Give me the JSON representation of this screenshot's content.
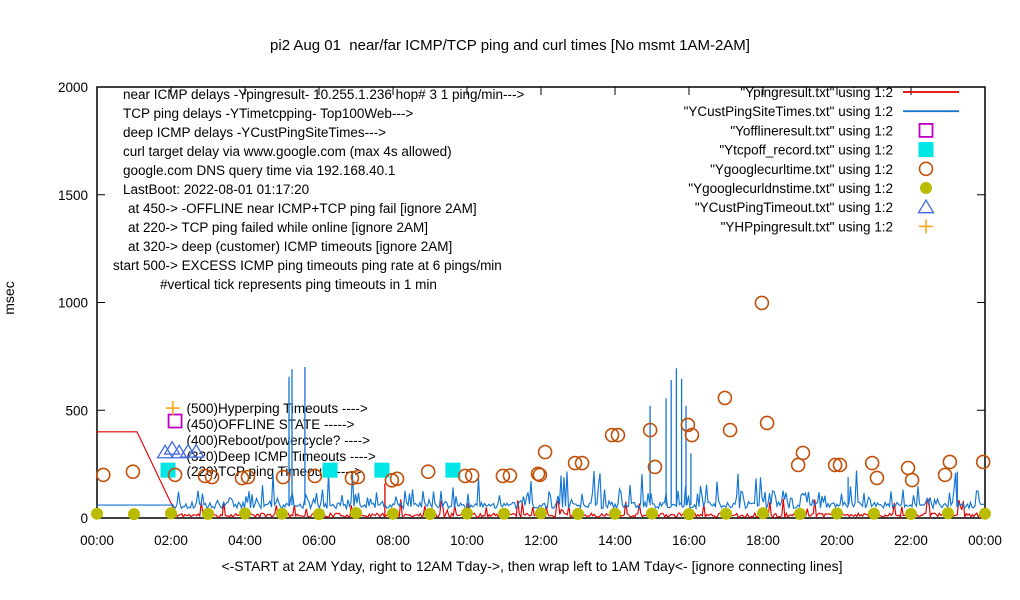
{
  "title": "pi2 Aug 01  near/far ICMP/TCP ping and curl times [No msmt 1AM-2AM]",
  "y_axis": {
    "label": "msec",
    "ticks": [
      0,
      500,
      1000,
      1500,
      2000
    ]
  },
  "x_axis": {
    "tick_labels": [
      "00:00",
      "02:00",
      "04:00",
      "06:00",
      "08:00",
      "10:00",
      "12:00",
      "14:00",
      "16:00",
      "18:00",
      "20:00",
      "22:00",
      "00:00"
    ],
    "caption": "<-START at 2AM Yday, right to 12AM Tday->, then wrap left to 1AM Tday<- [ignore connecting lines]"
  },
  "info_lines": [
    "near ICMP delays -Ypingresult- 10.255.1.236 hop# 3 1 ping/min--->",
    "TCP ping delays -YTimetcpping- Top100Web--->",
    "deep ICMP delays -YCustPingSiteTimes--->",
    "curl target delay via www.google.com (max 4s allowed)",
    "google.com DNS query time via 192.168.40.1",
    "LastBoot: 2022-08-01 01:17:20",
    "at 450-> -OFFLINE near ICMP+TCP ping fail [ignore 2AM]",
    "at 220-> TCP ping failed while online [ignore 2AM]",
    "at 320-> deep (customer) ICMP timeouts [ignore 2AM]",
    "start 500-> EXCESS ICMP ping timeouts ping rate at 6 pings/min",
    "#vertical tick represents ping timeouts in 1 min"
  ],
  "annotations": [
    {
      "label": "(500)Hyperping Timeouts ---->",
      "x_hour": 2.42,
      "y_msec": 510
    },
    {
      "label": "(450)OFFLINE STATE ----->",
      "x_hour": 2.42,
      "y_msec": 437
    },
    {
      "label": "(400)Reboot/powercycle? ---->",
      "x_hour": 2.42,
      "y_msec": 362
    },
    {
      "label": "(320)Deep ICMP Timeouts ---->",
      "x_hour": 2.42,
      "y_msec": 288
    },
    {
      "label": "(220)TCP ping Timeouts ---->",
      "x_hour": 2.42,
      "y_msec": 218
    }
  ],
  "chart_data": {
    "type": "line+scatter",
    "x_unit": "time of day (hours 0-24)",
    "y_unit": "msec",
    "ylim": [
      0,
      2000
    ],
    "xlim_hours": [
      0,
      24
    ],
    "grid": false,
    "legend_position": "top-right",
    "series": [
      {
        "name": "Ypingresult",
        "legend": "\"Ypingresult.txt\" using 1:2",
        "style": "line",
        "color": "#e30000",
        "seed": 11,
        "keypoints": [
          [
            0,
            400
          ],
          [
            1.08,
            400
          ],
          [
            2.17,
            8
          ]
        ],
        "noise_from": 2.17,
        "noise": {
          "base": [
            3,
            23
          ],
          "bump": [
            35,
            90,
            0.07
          ],
          "rare": [
            0,
            0,
            0
          ]
        },
        "spike_base": 5,
        "spikes": [
          [
            7.78,
            160
          ]
        ]
      },
      {
        "name": "YCustPingSiteTimes",
        "legend": "\"YCustPingSiteTimes.txt\" using 1:2",
        "style": "line",
        "color": "#1476d2",
        "seed": 5,
        "keypoints": [
          [
            0,
            60
          ],
          [
            2.0,
            60
          ]
        ],
        "noise_from": 2.0,
        "noise": {
          "base": [
            44,
            74
          ],
          "bump": [
            76,
            135,
            0.2
          ],
          "rare": [
            140,
            225,
            0.045
          ]
        },
        "spike_base": 60,
        "spikes": [
          [
            5.19,
            655
          ],
          [
            5.27,
            690
          ],
          [
            5.62,
            700
          ],
          [
            14.95,
            520
          ],
          [
            15.38,
            555
          ],
          [
            15.52,
            640
          ],
          [
            15.66,
            695
          ],
          [
            15.8,
            645
          ],
          [
            15.92,
            520
          ],
          [
            16.05,
            300
          ],
          [
            20.3,
            190
          ],
          [
            23.25,
            215
          ]
        ]
      },
      {
        "name": "Yofflineresult",
        "legend": "\"Yofflineresult.txt\" using 1:2",
        "style": "square-open",
        "color": "#c000c0",
        "points": [
          [
            2.11,
            450
          ]
        ]
      },
      {
        "name": "Ytcpoff_record",
        "legend": "\"Ytcpoff_record.txt\" using 1:2",
        "style": "square-filled",
        "color": "#00e6e6",
        "points": [
          [
            1.92,
            222
          ],
          [
            6.3,
            222
          ],
          [
            7.7,
            222
          ],
          [
            9.62,
            222
          ]
        ]
      },
      {
        "name": "Ygooglecurltime",
        "legend": "\"Ygooglecurltime.txt\" using 1:2",
        "style": "circle-open",
        "color": "#c0500a",
        "points": [
          [
            0.17,
            200
          ],
          [
            0.97,
            215
          ],
          [
            2.11,
            200
          ],
          [
            2.92,
            195
          ],
          [
            3.11,
            190
          ],
          [
            3.92,
            185
          ],
          [
            4.08,
            190
          ],
          [
            5.03,
            190
          ],
          [
            5.89,
            195
          ],
          [
            6.89,
            185
          ],
          [
            7.05,
            190
          ],
          [
            7.97,
            175
          ],
          [
            8.11,
            182
          ],
          [
            8.95,
            215
          ],
          [
            9.95,
            195
          ],
          [
            10.14,
            197
          ],
          [
            10.97,
            195
          ],
          [
            11.16,
            197
          ],
          [
            11.92,
            205
          ],
          [
            11.97,
            200
          ],
          [
            12.11,
            306
          ],
          [
            12.92,
            255
          ],
          [
            13.11,
            255
          ],
          [
            13.92,
            385
          ],
          [
            14.08,
            385
          ],
          [
            14.95,
            408
          ],
          [
            15.08,
            237
          ],
          [
            15.97,
            432
          ],
          [
            16.08,
            385
          ],
          [
            16.97,
            557
          ],
          [
            17.11,
            408
          ],
          [
            17.97,
            998
          ],
          [
            18.11,
            441
          ],
          [
            18.95,
            246
          ],
          [
            19.08,
            302
          ],
          [
            19.95,
            246
          ],
          [
            20.08,
            246
          ],
          [
            20.95,
            255
          ],
          [
            21.08,
            186
          ],
          [
            21.92,
            232
          ],
          [
            22.03,
            176
          ],
          [
            22.92,
            200
          ],
          [
            23.05,
            260
          ],
          [
            23.95,
            260
          ]
        ]
      },
      {
        "name": "Ygooglecurldnstime",
        "legend": "\"Ygooglecurldnstime.txt\" using 1:2",
        "style": "circle-filled",
        "color": "#b9bc00",
        "points": [
          [
            0,
            20
          ],
          [
            1,
            18
          ],
          [
            2,
            22
          ],
          [
            3,
            19
          ],
          [
            4,
            21
          ],
          [
            5,
            20
          ],
          [
            6,
            18
          ],
          [
            7,
            23
          ],
          [
            8,
            20
          ],
          [
            9,
            19
          ],
          [
            10,
            21
          ],
          [
            11,
            20
          ],
          [
            12,
            22
          ],
          [
            13,
            19
          ],
          [
            14,
            20
          ],
          [
            15,
            21
          ],
          [
            16,
            18
          ],
          [
            17,
            20
          ],
          [
            18,
            22
          ],
          [
            19,
            19
          ],
          [
            20,
            21
          ],
          [
            21,
            20
          ],
          [
            22,
            19
          ],
          [
            23,
            22
          ],
          [
            24,
            20
          ]
        ]
      },
      {
        "name": "YCustPingTimeout",
        "legend": "\"YCustPingTimeout.txt\" using 1:2",
        "style": "triangle-open",
        "color": "#4169e1",
        "points": [
          [
            1.84,
            305
          ],
          [
            2.03,
            322
          ],
          [
            2.22,
            305
          ],
          [
            2.46,
            308
          ],
          [
            2.68,
            308
          ]
        ]
      },
      {
        "name": "YHPpingresult",
        "legend": "\"YHPpingresult.txt\" using 1:2",
        "style": "plus",
        "color": "#ffa51e",
        "points": [
          [
            2.05,
            510
          ]
        ]
      }
    ]
  }
}
